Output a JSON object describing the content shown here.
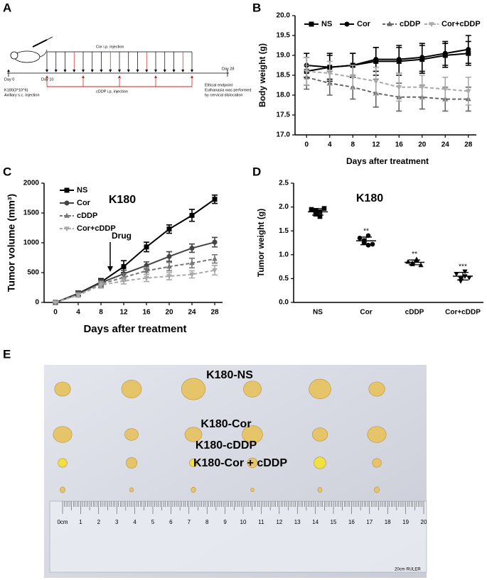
{
  "panel_labels": [
    "A",
    "B",
    "C",
    "D",
    "E"
  ],
  "diagram": {
    "cor_label": "Cor i.p. injection",
    "cddp_label": "cDDP i.p. injection",
    "day0": "Day 0",
    "day10": "Day 10",
    "day28": "Day 28",
    "start_note": [
      "K180(3*10^6)",
      "Axillary s.c. injection"
    ],
    "end_note": [
      "Ethical endpoint",
      "Euthanasia was performed",
      "by cervical dislocation"
    ]
  },
  "chart_data": [
    {
      "type": "line",
      "ylabel": "Body weight (g)",
      "xlabel": "Days after treatment",
      "x": [
        0,
        4,
        8,
        12,
        16,
        20,
        24,
        28
      ],
      "xlim": [
        -2,
        30
      ],
      "xticks": [
        0,
        4,
        8,
        12,
        16,
        20,
        24,
        28
      ],
      "ylim": [
        17,
        20
      ],
      "yticks": [
        {
          "value": 17,
          "label": "17.0"
        },
        17.5,
        {
          "value": 18,
          "label": "18.0"
        },
        18.5,
        {
          "value": 19,
          "label": "19.0"
        },
        19.5,
        {
          "value": 20,
          "label": "20.0"
        }
      ],
      "legend": "top",
      "series": [
        {
          "name": "NS",
          "color": "#000000",
          "marker": "square",
          "dashed": false,
          "values": [
            18.6,
            18.7,
            18.75,
            18.85,
            18.85,
            18.9,
            19.0,
            19.05
          ],
          "errors": [
            0.35,
            0.35,
            0.3,
            0.35,
            0.35,
            0.35,
            0.3,
            0.3
          ]
        },
        {
          "name": "Cor",
          "color": "#000000",
          "marker": "circle",
          "dashed": false,
          "values": [
            18.75,
            18.7,
            18.75,
            18.9,
            18.9,
            18.95,
            19.05,
            19.15
          ],
          "errors": [
            0.3,
            0.3,
            0.3,
            0.3,
            0.35,
            0.35,
            0.3,
            0.35
          ]
        },
        {
          "name": "cDDP",
          "color": "#666666",
          "marker": "triangle",
          "dashed": true,
          "values": [
            18.45,
            18.3,
            18.2,
            18.05,
            17.95,
            17.95,
            17.9,
            17.9
          ],
          "errors": [
            0.3,
            0.3,
            0.3,
            0.35,
            0.35,
            0.3,
            0.3,
            0.3
          ]
        },
        {
          "name": "Cor+cDDP",
          "color": "#aaaaaa",
          "marker": "triangle-down",
          "dashed": true,
          "values": [
            18.6,
            18.55,
            18.45,
            18.35,
            18.2,
            18.2,
            18.15,
            18.1
          ],
          "errors": [
            0.35,
            0.3,
            0.3,
            0.35,
            0.35,
            0.3,
            0.3,
            0.35
          ]
        }
      ]
    },
    {
      "type": "line",
      "title": "K180",
      "ylabel": "Tumor volume (mm³)",
      "xlabel": "Days after treatment",
      "x": [
        0,
        4,
        8,
        12,
        16,
        20,
        24,
        28
      ],
      "xlim": [
        -2,
        30
      ],
      "xticks": [
        0,
        4,
        8,
        12,
        16,
        20,
        24,
        28
      ],
      "ylim": [
        0,
        2000
      ],
      "yticks": [
        0,
        500,
        1000,
        1500,
        2000
      ],
      "legend": "upper left",
      "annotation": "Drug",
      "series": [
        {
          "name": "NS",
          "color": "#000000",
          "marker": "square",
          "dashed": false,
          "values": [
            0,
            150,
            340,
            600,
            930,
            1230,
            1460,
            1730
          ],
          "errors": [
            0,
            40,
            60,
            100,
            80,
            70,
            100,
            70
          ]
        },
        {
          "name": "Cor",
          "color": "#444444",
          "marker": "circle",
          "dashed": false,
          "values": [
            0,
            140,
            330,
            480,
            620,
            770,
            910,
            1010
          ],
          "errors": [
            0,
            40,
            50,
            60,
            60,
            80,
            70,
            80
          ]
        },
        {
          "name": "cDDP",
          "color": "#777777",
          "marker": "triangle",
          "dashed": true,
          "values": [
            0,
            130,
            310,
            420,
            530,
            600,
            660,
            730
          ],
          "errors": [
            0,
            40,
            50,
            60,
            60,
            70,
            80,
            70
          ]
        },
        {
          "name": "Cor+cDDP",
          "color": "#aaaaaa",
          "marker": "triangle-down",
          "dashed": true,
          "values": [
            0,
            120,
            290,
            360,
            410,
            440,
            470,
            540
          ],
          "errors": [
            0,
            30,
            50,
            50,
            60,
            60,
            60,
            80
          ]
        }
      ]
    },
    {
      "type": "strip",
      "title": "K180",
      "ylabel": "Tumor weight (g)",
      "categories": [
        "NS",
        "Cor",
        "cDDP",
        "Cor+cDDP"
      ],
      "ylim": [
        0,
        2.5
      ],
      "yticks": [
        {
          "value": 0,
          "label": "0.0"
        },
        0.5,
        {
          "value": 1,
          "label": "1.0"
        },
        1.5,
        {
          "value": 2,
          "label": "2.0"
        },
        2.5
      ],
      "points": [
        [
          1.95,
          1.85,
          1.9,
          1.93,
          1.8,
          1.97
        ],
        [
          1.35,
          1.25,
          1.2,
          1.3,
          1.4,
          1.22
        ],
        [
          0.85,
          0.8,
          0.9,
          0.82,
          0.88,
          0.78
        ],
        [
          0.6,
          0.5,
          0.55,
          0.45,
          0.65,
          0.52
        ]
      ],
      "means": [
        1.9,
        1.29,
        0.84,
        0.55
      ],
      "sds": [
        0.07,
        0.08,
        0.05,
        0.08
      ],
      "markers": [
        "square",
        "circle",
        "triangle",
        "triangle-down"
      ],
      "significance": [
        null,
        "**",
        "**",
        "***"
      ],
      "color": "#000000"
    }
  ],
  "photo": {
    "labels": [
      "K180-NS",
      "K180-Cor",
      "K180-cDDP",
      "K180-Cor + cDDP"
    ],
    "ruler_labels": [
      "0cm",
      "1",
      "2",
      "3",
      "4",
      "5",
      "6",
      "7",
      "8",
      "9",
      "10",
      "11",
      "12",
      "13",
      "14",
      "15",
      "16",
      "17",
      "18",
      "19",
      "20"
    ],
    "ruler_brand": "20cm RULER"
  }
}
